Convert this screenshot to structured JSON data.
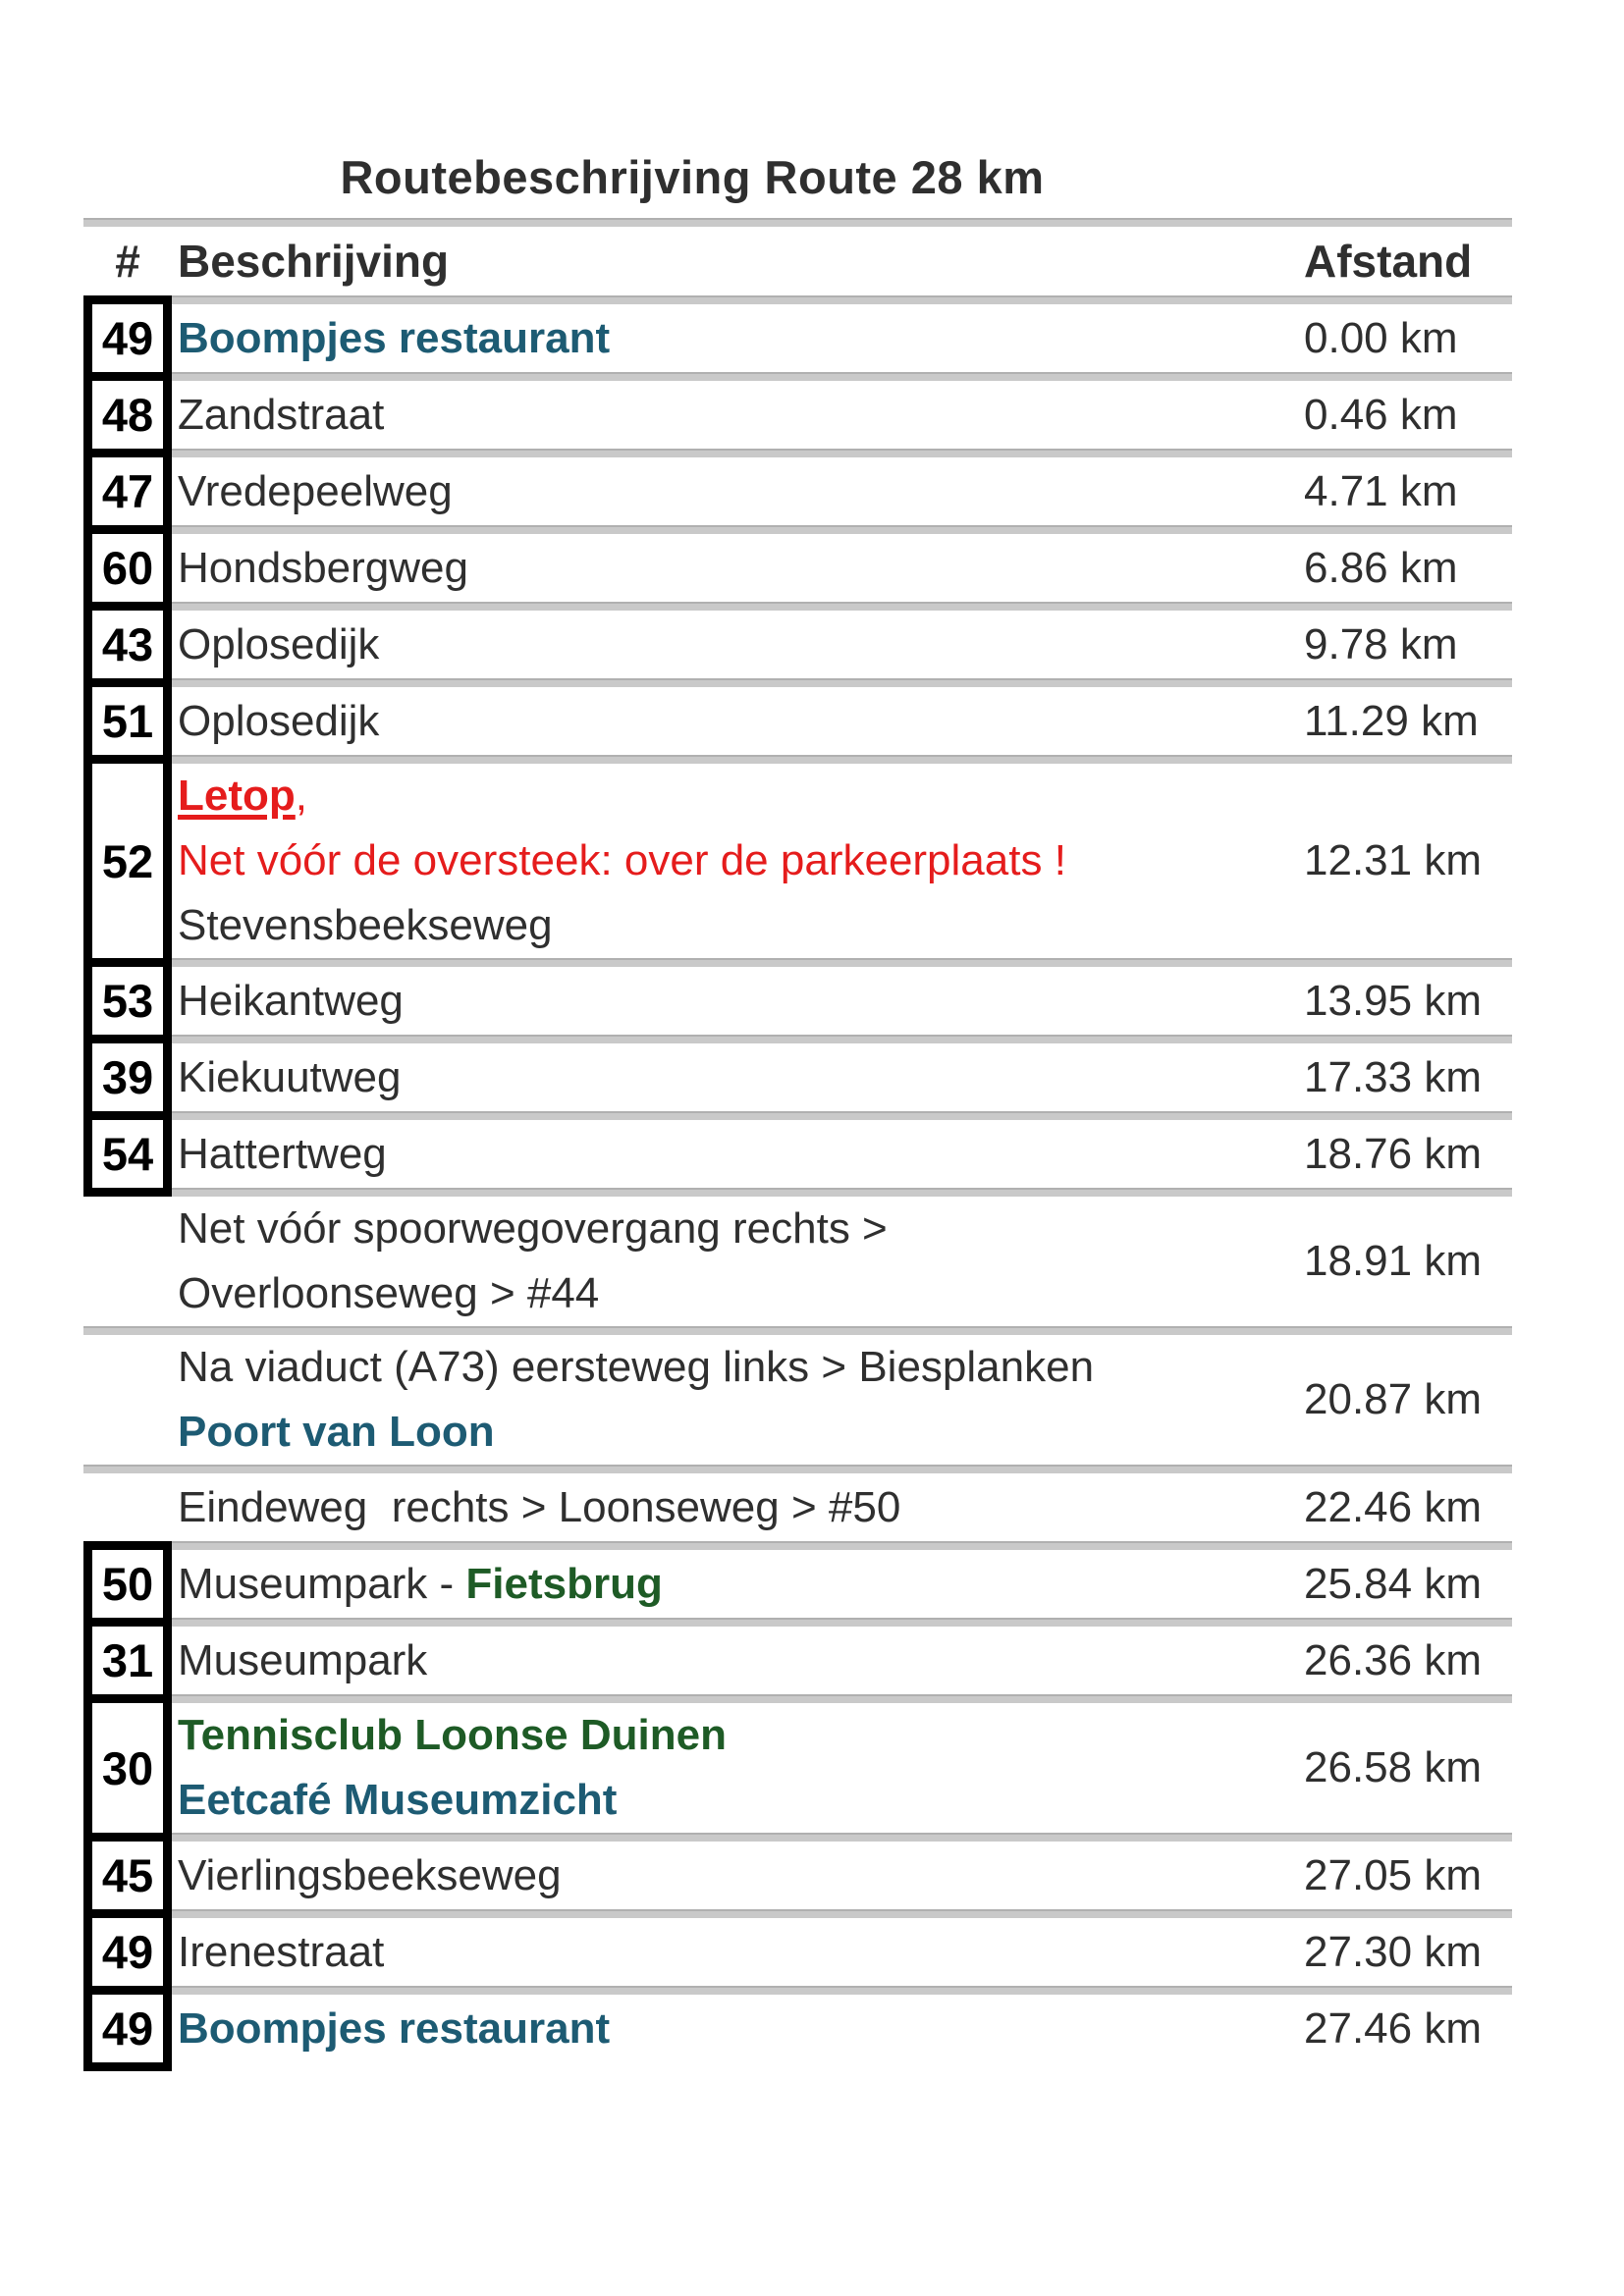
{
  "page": {
    "title": "Routebeschrijving Route 28 km"
  },
  "table": {
    "headers": {
      "number": "#",
      "description": "Beschrijving",
      "distance": "Afstand"
    },
    "rows": [
      {
        "number": "49",
        "lines": [
          [
            {
              "text": "Boompjes restaurant",
              "style": "teal-bold"
            }
          ]
        ],
        "distance": "0.00 km"
      },
      {
        "number": "48",
        "lines": [
          [
            {
              "text": "Zandstraat"
            }
          ]
        ],
        "distance": "0.46 km"
      },
      {
        "number": "47",
        "lines": [
          [
            {
              "text": "Vredepeelweg"
            }
          ]
        ],
        "distance": "4.71 km"
      },
      {
        "number": "60",
        "lines": [
          [
            {
              "text": "Hondsbergweg"
            }
          ]
        ],
        "distance": "6.86 km"
      },
      {
        "number": "43",
        "lines": [
          [
            {
              "text": "Oplosedijk"
            }
          ]
        ],
        "distance": "9.78 km"
      },
      {
        "number": "51",
        "lines": [
          [
            {
              "text": "Oplosedijk"
            }
          ]
        ],
        "distance": "11.29 km"
      },
      {
        "number": "52",
        "lines": [
          [
            {
              "text": "Letop",
              "style": "red-bold-underline"
            },
            {
              "text": ",",
              "style": "red"
            }
          ],
          [
            {
              "text": "Net vóór de oversteek: over de parkeerplaats !",
              "style": "red"
            }
          ],
          [
            {
              "text": "Stevensbeekseweg"
            }
          ]
        ],
        "distance": "12.31 km"
      },
      {
        "number": "53",
        "lines": [
          [
            {
              "text": "Heikantweg"
            }
          ]
        ],
        "distance": "13.95 km"
      },
      {
        "number": "39",
        "lines": [
          [
            {
              "text": "Kiekuutweg"
            }
          ]
        ],
        "distance": "17.33 km"
      },
      {
        "number": "54",
        "lines": [
          [
            {
              "text": "Hattertweg"
            }
          ]
        ],
        "distance": "18.76 km"
      },
      {
        "number": null,
        "lines": [
          [
            {
              "text": "Net vóór spoorwegovergang rechts >"
            }
          ],
          [
            {
              "text": "Overloonseweg > #44"
            }
          ]
        ],
        "distance": "18.91 km"
      },
      {
        "number": null,
        "lines": [
          [
            {
              "text": "Na viaduct (A73) eersteweg links > Biesplanken"
            }
          ],
          [
            {
              "text": "Poort van Loon",
              "style": "teal-bold"
            }
          ]
        ],
        "distance": "20.87 km"
      },
      {
        "number": null,
        "lines": [
          [
            {
              "text": "Eindeweg  rechts > Loonseweg > #50"
            }
          ]
        ],
        "distance": "22.46 km"
      },
      {
        "number": "50",
        "lines": [
          [
            {
              "text": "Museumpark - "
            },
            {
              "text": "Fietsbrug",
              "style": "green-bold"
            }
          ]
        ],
        "distance": "25.84 km"
      },
      {
        "number": "31",
        "lines": [
          [
            {
              "text": "Museumpark"
            }
          ]
        ],
        "distance": "26.36 km"
      },
      {
        "number": "30",
        "lines": [
          [
            {
              "text": "Tennisclub Loonse Duinen",
              "style": "green-bold"
            }
          ],
          [
            {
              "text": "Eetcafé Museumzicht",
              "style": "teal-bold"
            }
          ]
        ],
        "distance": "26.58 km"
      },
      {
        "number": "45",
        "lines": [
          [
            {
              "text": "Vierlingsbeekseweg"
            }
          ]
        ],
        "distance": "27.05 km"
      },
      {
        "number": "49",
        "lines": [
          [
            {
              "text": "Irenestraat"
            }
          ]
        ],
        "distance": "27.30 km"
      },
      {
        "number": "49",
        "lines": [
          [
            {
              "text": "Boompjes restaurant",
              "style": "teal-bold"
            }
          ]
        ],
        "distance": "27.46 km"
      }
    ]
  },
  "colors": {
    "body_text": "#2f2f2f",
    "accent_teal": "#1d5b73",
    "accent_green": "#1e5b26",
    "alert_red": "#e51c1c",
    "separator_gray": "#c9c9c9",
    "badge_black": "#000000"
  }
}
